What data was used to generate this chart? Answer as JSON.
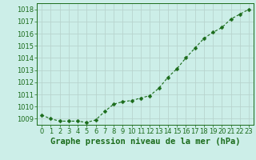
{
  "x": [
    0,
    1,
    2,
    3,
    4,
    5,
    6,
    7,
    8,
    9,
    10,
    11,
    12,
    13,
    14,
    15,
    16,
    17,
    18,
    19,
    20,
    21,
    22,
    23
  ],
  "y": [
    1009.3,
    1009.0,
    1008.8,
    1008.8,
    1008.8,
    1008.7,
    1008.9,
    1009.6,
    1010.2,
    1010.4,
    1010.5,
    1010.7,
    1010.9,
    1011.5,
    1012.4,
    1013.1,
    1014.0,
    1014.8,
    1015.6,
    1016.1,
    1016.5,
    1017.2,
    1017.6,
    1018.0
  ],
  "line_color": "#1a6b1a",
  "marker": "D",
  "marker_size": 2.5,
  "line_width": 0.8,
  "xlabel": "Graphe pression niveau de la mer (hPa)",
  "xlabel_fontsize": 7.5,
  "xlabel_color": "#1a6b1a",
  "ylim": [
    1008.5,
    1018.5
  ],
  "xlim": [
    -0.5,
    23.5
  ],
  "yticks": [
    1009,
    1010,
    1011,
    1012,
    1013,
    1014,
    1015,
    1016,
    1017,
    1018
  ],
  "xticks": [
    0,
    1,
    2,
    3,
    4,
    5,
    6,
    7,
    8,
    9,
    10,
    11,
    12,
    13,
    14,
    15,
    16,
    17,
    18,
    19,
    20,
    21,
    22,
    23
  ],
  "background_color": "#cceee8",
  "grid_color": "#b8d4ce",
  "tick_fontsize": 6,
  "tick_color": "#1a6b1a",
  "spine_color": "#1a6b1a"
}
